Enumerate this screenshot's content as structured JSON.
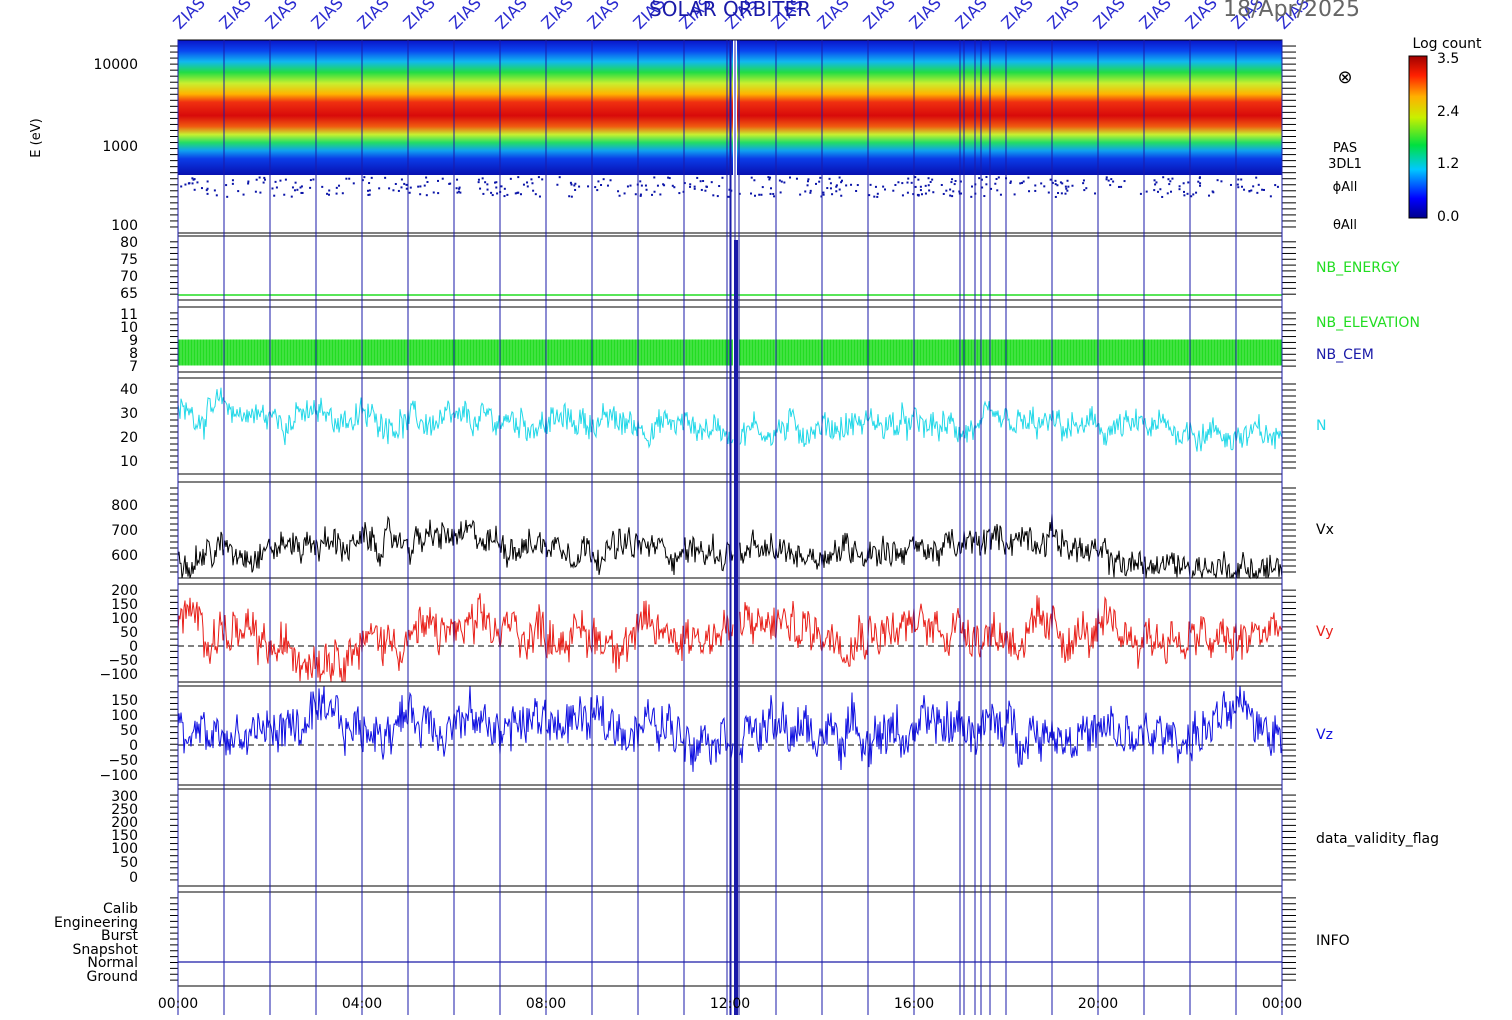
{
  "header": {
    "title": "SOLAR ORBITER",
    "date": "18/Apr/2025",
    "label_text": "ZIAS"
  },
  "colorbar": {
    "title": "Log count",
    "ticks": [
      "3.5",
      "2.4",
      "1.2",
      "0.0"
    ]
  },
  "spectrogram": {
    "ylabel": "E (eV)",
    "yticks": [
      "10000",
      "1000",
      "100"
    ],
    "side_labels": [
      "PAS",
      "3DL1",
      "ϕAll",
      "θAll"
    ],
    "symbol": "⊗"
  },
  "colors": {
    "N": "#22d8e8",
    "Vx": "#000000",
    "Vy": "#e8201a",
    "Vz": "#1010e0",
    "nb_green": "#22dd22",
    "vline": "#1a1aa8"
  },
  "chart_data": [
    {
      "type": "heatmap",
      "name": "PAS 3DL1 energy spectrogram",
      "ylabel": "E (eV)",
      "yscale": "log",
      "ylim": [
        100,
        15000
      ],
      "peak_energy_eV": [
        1500,
        2500
      ],
      "colorbar_range": [
        0.0,
        3.5
      ]
    },
    {
      "type": "line",
      "name": "NB_ENERGY",
      "yticks": [
        "80",
        "75",
        "70",
        "65"
      ],
      "ylim": [
        60,
        82
      ],
      "constant_value": 63.5
    },
    {
      "type": "bar",
      "name": "NB_ELEVATION",
      "secondary_label": "NB_CEM",
      "yticks": [
        "11",
        "10",
        "9",
        "8",
        "7"
      ],
      "ylim": [
        6.5,
        11.5
      ],
      "range": [
        7,
        9
      ]
    },
    {
      "type": "line",
      "name": "N",
      "yticks": [
        "40",
        "30",
        "20",
        "10"
      ],
      "ylim": [
        2,
        45
      ],
      "x_hours": [
        0,
        1,
        2,
        3,
        4,
        5,
        6,
        7,
        8,
        9,
        10,
        11,
        12,
        13,
        14,
        15,
        16,
        17,
        18,
        19,
        20,
        21,
        22,
        23,
        24
      ],
      "values": [
        28,
        31,
        27,
        28,
        27,
        26,
        24,
        26,
        25,
        26,
        24,
        24,
        22,
        22,
        23,
        25,
        23,
        22,
        23,
        23,
        22,
        22,
        22,
        19,
        18
      ]
    },
    {
      "type": "line",
      "name": "Vx",
      "yticks": [
        "800",
        "700",
        "600"
      ],
      "ylim": [
        560,
        870
      ],
      "x_hours": [
        0,
        1,
        2,
        3,
        4,
        5,
        6,
        7,
        8,
        9,
        10,
        11,
        12,
        13,
        14,
        15,
        16,
        17,
        18,
        19,
        20,
        21,
        22,
        23,
        24
      ],
      "values": [
        630,
        650,
        660,
        675,
        665,
        680,
        690,
        675,
        670,
        660,
        655,
        650,
        640,
        635,
        645,
        660,
        650,
        655,
        690,
        700,
        620,
        600,
        600,
        595,
        585
      ]
    },
    {
      "type": "line",
      "name": "Vy",
      "yticks": [
        "200",
        "150",
        "100",
        "50",
        "0",
        "−50",
        "−100"
      ],
      "ylim": [
        -120,
        215
      ],
      "x_hours": [
        0,
        1,
        2,
        3,
        4,
        5,
        6,
        7,
        8,
        9,
        10,
        11,
        12,
        13,
        14,
        15,
        16,
        17,
        18,
        19,
        20,
        21,
        22,
        23,
        24
      ],
      "values": [
        80,
        60,
        -20,
        -10,
        10,
        40,
        50,
        50,
        60,
        30,
        40,
        50,
        50,
        80,
        50,
        70,
        60,
        80,
        40,
        40,
        40,
        40,
        20,
        10,
        80
      ]
    },
    {
      "type": "line",
      "name": "Vz",
      "yticks": [
        "150",
        "100",
        "50",
        "0",
        "−50",
        "−100"
      ],
      "ylim": [
        -125,
        175
      ],
      "x_hours": [
        0,
        1,
        2,
        3,
        4,
        5,
        6,
        7,
        8,
        9,
        10,
        11,
        12,
        13,
        14,
        15,
        16,
        17,
        18,
        19,
        20,
        21,
        22,
        23,
        24
      ],
      "values": [
        0,
        20,
        40,
        60,
        40,
        80,
        70,
        50,
        70,
        60,
        60,
        40,
        50,
        40,
        30,
        40,
        30,
        60,
        40,
        50,
        20,
        10,
        30,
        80,
        60
      ]
    },
    {
      "type": "line",
      "name": "data_validity_flag",
      "yticks": [
        "300",
        "250",
        "200",
        "150",
        "100",
        "50",
        "0"
      ],
      "ylim": [
        -35,
        310
      ]
    },
    {
      "type": "table",
      "name": "INFO",
      "categories": [
        "Calib",
        "Engineering",
        "Burst",
        "Snapshot",
        "Normal",
        "Ground"
      ]
    }
  ],
  "xaxis": {
    "ticks": [
      "00:00",
      "04:00",
      "08:00",
      "12:00",
      "16:00",
      "20:00",
      "00:00"
    ]
  }
}
